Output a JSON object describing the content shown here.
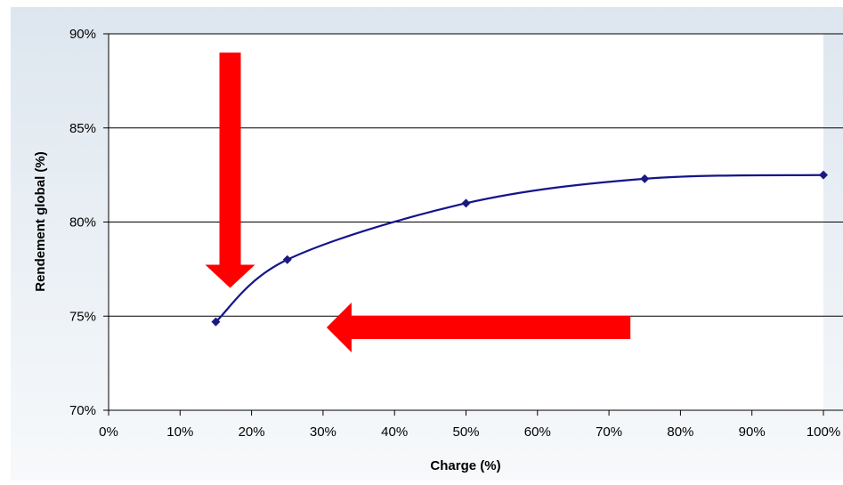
{
  "chart_data": {
    "type": "line",
    "title": "",
    "xlabel": "Charge (%)",
    "ylabel": "Rendement global (%)",
    "xlim": [
      0,
      100
    ],
    "ylim": [
      70,
      90
    ],
    "x_ticks": [
      "0%",
      "10%",
      "20%",
      "30%",
      "40%",
      "50%",
      "60%",
      "70%",
      "80%",
      "90%",
      "100%"
    ],
    "y_ticks": [
      "70%",
      "75%",
      "80%",
      "85%",
      "90%"
    ],
    "grid": "horizontal",
    "series": [
      {
        "x": [
          15,
          25,
          50,
          75,
          100
        ],
        "y": [
          74.7,
          78.0,
          81.0,
          82.3,
          82.5
        ],
        "smooth": true,
        "marker": "diamond"
      }
    ],
    "annotations": [
      {
        "type": "arrow",
        "direction": "down",
        "x_data": 17,
        "from_y": 89,
        "to_y": 76.5
      },
      {
        "type": "arrow",
        "direction": "left",
        "y_data": 74.4,
        "from_x": 73,
        "to_x": 30.5
      }
    ],
    "colors": {
      "line": "#14148c",
      "marker": "#1a1a80",
      "grid": "#000000",
      "arrow": "#ff0000",
      "background_top": "#dde6ef",
      "background_bottom": "#f7f9fb"
    }
  }
}
